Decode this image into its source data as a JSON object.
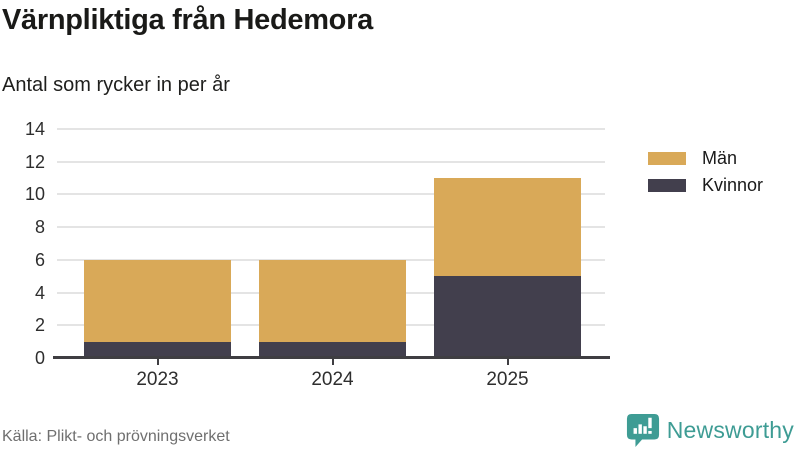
{
  "header": {
    "title": "Värnpliktiga från Hedemora",
    "subtitle": "Antal som rycker in per år"
  },
  "chart_data": {
    "type": "bar",
    "stacked": true,
    "categories": [
      "2023",
      "2024",
      "2025"
    ],
    "series": [
      {
        "name": "Män",
        "color": "#d9a958",
        "values": [
          5,
          5,
          6
        ]
      },
      {
        "name": "Kvinnor",
        "color": "#423f4d",
        "values": [
          1,
          1,
          5
        ]
      }
    ],
    "totals": [
      6,
      6,
      11
    ],
    "ylim": [
      0,
      14
    ],
    "yticks": [
      0,
      2,
      4,
      6,
      8,
      10,
      12,
      14
    ],
    "grid": true,
    "legend_position": "right"
  },
  "legend": {
    "items": [
      {
        "label": "Män",
        "color": "#d9a958"
      },
      {
        "label": "Kvinnor",
        "color": "#423f4d"
      }
    ]
  },
  "footer": {
    "source": "Källa: Plikt- och prövningsverket",
    "brand": "Newsworthy",
    "brand_color": "#3e9c94"
  },
  "colors": {
    "gridline": "#e4e4e4",
    "axis": "#3f3e42",
    "title_text": "#1a1a18",
    "tick_text": "#2e2e2e",
    "source_text": "#6f6f6f"
  }
}
